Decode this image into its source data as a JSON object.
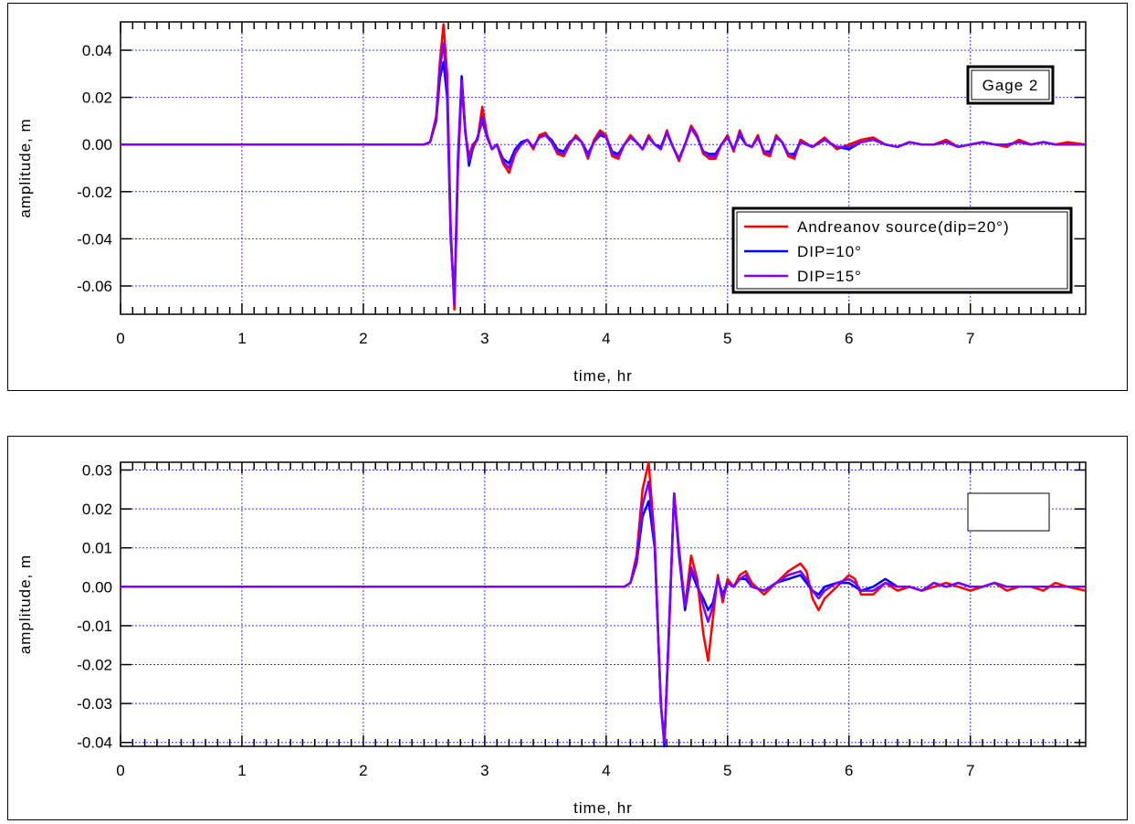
{
  "chart_data": [
    {
      "type": "line",
      "title": "",
      "annotation": "Gage 2",
      "xlabel": "time, hr",
      "ylabel": "amplitude, m",
      "xlim": [
        0,
        7.95
      ],
      "ylim": [
        -0.072,
        0.052
      ],
      "x_ticks": [
        0,
        1,
        2,
        3,
        4,
        5,
        6,
        7
      ],
      "y_ticks": [
        0.04,
        0.02,
        0.0,
        -0.02,
        -0.04,
        -0.06
      ],
      "y_tick_labels": [
        "0.04",
        "0.02",
        "0.00",
        "-0.02",
        "-0.04",
        "-0.06"
      ],
      "grid": true,
      "legend_position": "bottom-right",
      "series": [
        {
          "name": "Andreanov source(dip=20°)",
          "color": "#ff0000",
          "x": [
            0,
            2.5,
            2.55,
            2.6,
            2.63,
            2.66,
            2.69,
            2.72,
            2.75,
            2.78,
            2.81,
            2.84,
            2.87,
            2.9,
            2.94,
            2.98,
            3.02,
            3.06,
            3.1,
            3.15,
            3.2,
            3.25,
            3.3,
            3.35,
            3.4,
            3.45,
            3.5,
            3.55,
            3.6,
            3.65,
            3.7,
            3.75,
            3.8,
            3.85,
            3.9,
            3.95,
            4.0,
            4.05,
            4.1,
            4.15,
            4.2,
            4.25,
            4.3,
            4.35,
            4.4,
            4.45,
            4.5,
            4.55,
            4.6,
            4.65,
            4.7,
            4.75,
            4.8,
            4.85,
            4.9,
            4.95,
            5.0,
            5.05,
            5.1,
            5.15,
            5.2,
            5.25,
            5.3,
            5.35,
            5.4,
            5.45,
            5.5,
            5.55,
            5.6,
            5.7,
            5.8,
            5.9,
            6.0,
            6.1,
            6.2,
            6.3,
            6.4,
            6.5,
            6.6,
            6.7,
            6.8,
            6.9,
            7.0,
            7.1,
            7.2,
            7.3,
            7.4,
            7.5,
            7.6,
            7.7,
            7.8,
            7.95
          ],
          "y": [
            0,
            0,
            0.001,
            0.012,
            0.035,
            0.051,
            0.03,
            -0.035,
            -0.07,
            -0.01,
            0.025,
            0.005,
            -0.005,
            0.0,
            0.002,
            0.016,
            0.004,
            -0.002,
            0.0,
            -0.008,
            -0.012,
            -0.004,
            0.0,
            0.002,
            -0.002,
            0.004,
            0.005,
            0.001,
            -0.004,
            -0.005,
            0.0,
            0.004,
            0.001,
            -0.006,
            0.002,
            0.006,
            0.004,
            -0.005,
            -0.006,
            0.0,
            0.004,
            0.001,
            -0.002,
            0.004,
            0.0,
            -0.002,
            0.006,
            -0.001,
            -0.007,
            0.0,
            0.008,
            0.004,
            -0.004,
            -0.006,
            -0.006,
            0.0,
            0.004,
            -0.003,
            0.006,
            0.0,
            -0.001,
            0.004,
            -0.004,
            -0.005,
            0.004,
            0.001,
            -0.005,
            -0.006,
            0.002,
            -0.001,
            0.003,
            -0.002,
            0.0,
            0.002,
            0.003,
            0.0,
            -0.001,
            0.001,
            0.0,
            0.0,
            0.002,
            -0.001,
            0.0,
            0.001,
            0.0,
            -0.001,
            0.002,
            0.0,
            0.001,
            0.0,
            0.001,
            0.0
          ]
        },
        {
          "name": "DIP=10°",
          "color": "#0000ff",
          "x": [
            0,
            2.5,
            2.55,
            2.6,
            2.63,
            2.66,
            2.69,
            2.72,
            2.75,
            2.78,
            2.81,
            2.84,
            2.87,
            2.9,
            2.94,
            2.98,
            3.02,
            3.06,
            3.1,
            3.15,
            3.2,
            3.25,
            3.3,
            3.35,
            3.4,
            3.45,
            3.5,
            3.55,
            3.6,
            3.65,
            3.7,
            3.75,
            3.8,
            3.85,
            3.9,
            3.95,
            4.0,
            4.05,
            4.1,
            4.15,
            4.2,
            4.25,
            4.3,
            4.35,
            4.4,
            4.45,
            4.5,
            4.55,
            4.6,
            4.65,
            4.7,
            4.75,
            4.8,
            4.85,
            4.9,
            4.95,
            5.0,
            5.05,
            5.1,
            5.15,
            5.2,
            5.25,
            5.3,
            5.35,
            5.4,
            5.45,
            5.5,
            5.55,
            5.6,
            5.7,
            5.8,
            5.9,
            6.0,
            6.1,
            6.2,
            6.3,
            6.4,
            6.5,
            6.6,
            6.7,
            6.8,
            6.9,
            7.0,
            7.1,
            7.2,
            7.3,
            7.4,
            7.5,
            7.6,
            7.7,
            7.8,
            7.95
          ],
          "y": [
            0,
            0,
            0.001,
            0.01,
            0.028,
            0.035,
            0.02,
            -0.04,
            -0.066,
            -0.005,
            0.029,
            0.006,
            -0.009,
            -0.002,
            0.003,
            0.01,
            0.003,
            -0.002,
            0.0,
            -0.006,
            -0.008,
            -0.002,
            0.001,
            0.002,
            -0.001,
            0.003,
            0.004,
            0.002,
            -0.002,
            -0.003,
            0.001,
            0.003,
            0.001,
            -0.004,
            0.001,
            0.004,
            0.003,
            -0.003,
            -0.004,
            0.0,
            0.003,
            0.001,
            -0.002,
            0.003,
            0.0,
            -0.001,
            0.005,
            -0.001,
            -0.006,
            0.0,
            0.007,
            0.003,
            -0.003,
            -0.004,
            -0.004,
            0.0,
            0.003,
            -0.002,
            0.004,
            0.0,
            -0.001,
            0.003,
            -0.003,
            -0.003,
            0.003,
            0.001,
            -0.004,
            -0.004,
            0.001,
            -0.001,
            0.002,
            -0.001,
            -0.002,
            0.001,
            0.002,
            0.0,
            -0.001,
            0.001,
            0.0,
            0.0,
            0.001,
            -0.001,
            0.0,
            0.001,
            0.0,
            0.0,
            0.001,
            0.0,
            0.001,
            0.0,
            0.0,
            0.0
          ]
        },
        {
          "name": "DIP=15°",
          "color": "#8000ff",
          "x": [
            0,
            2.5,
            2.55,
            2.6,
            2.63,
            2.66,
            2.69,
            2.72,
            2.75,
            2.78,
            2.81,
            2.84,
            2.87,
            2.9,
            2.94,
            2.98,
            3.02,
            3.06,
            3.1,
            3.15,
            3.2,
            3.25,
            3.3,
            3.35,
            3.4,
            3.45,
            3.5,
            3.55,
            3.6,
            3.65,
            3.7,
            3.75,
            3.8,
            3.85,
            3.9,
            3.95,
            4.0,
            4.05,
            4.1,
            4.15,
            4.2,
            4.25,
            4.3,
            4.35,
            4.4,
            4.45,
            4.5,
            4.55,
            4.6,
            4.65,
            4.7,
            4.75,
            4.8,
            4.85,
            4.9,
            4.95,
            5.0,
            5.05,
            5.1,
            5.15,
            5.2,
            5.25,
            5.3,
            5.35,
            5.4,
            5.45,
            5.5,
            5.55,
            5.6,
            5.7,
            5.8,
            5.9,
            6.0,
            6.1,
            6.2,
            6.3,
            6.4,
            6.5,
            6.6,
            6.7,
            6.8,
            6.9,
            7.0,
            7.1,
            7.2,
            7.3,
            7.4,
            7.5,
            7.6,
            7.7,
            7.8,
            7.95
          ],
          "y": [
            0,
            0,
            0.001,
            0.011,
            0.032,
            0.043,
            0.025,
            -0.038,
            -0.068,
            -0.007,
            0.027,
            0.005,
            -0.007,
            -0.001,
            0.002,
            0.012,
            0.003,
            -0.002,
            0.0,
            -0.007,
            -0.01,
            -0.003,
            0.0,
            0.002,
            -0.001,
            0.003,
            0.004,
            0.001,
            -0.003,
            -0.004,
            0.001,
            0.003,
            0.001,
            -0.005,
            0.001,
            0.005,
            0.003,
            -0.004,
            -0.005,
            0.0,
            0.003,
            0.001,
            -0.002,
            0.003,
            0.0,
            -0.002,
            0.005,
            -0.001,
            -0.006,
            0.0,
            0.007,
            0.003,
            -0.003,
            -0.005,
            -0.005,
            0.0,
            0.003,
            -0.002,
            0.005,
            0.0,
            -0.001,
            0.003,
            -0.003,
            -0.004,
            0.003,
            0.001,
            -0.004,
            -0.005,
            0.001,
            -0.001,
            0.002,
            -0.001,
            -0.001,
            0.001,
            0.002,
            0.0,
            -0.001,
            0.001,
            0.0,
            0.0,
            0.001,
            -0.001,
            0.0,
            0.001,
            0.0,
            0.0,
            0.001,
            0.0,
            0.001,
            0.0,
            0.0,
            0.0
          ]
        }
      ]
    },
    {
      "type": "line",
      "title": "",
      "xlabel": "time, hr",
      "ylabel": "amplitude, m",
      "xlim": [
        0,
        7.95
      ],
      "ylim": [
        -0.041,
        0.032
      ],
      "x_ticks": [
        0,
        1,
        2,
        3,
        4,
        5,
        6,
        7
      ],
      "y_ticks": [
        0.03,
        0.02,
        0.01,
        0.0,
        -0.01,
        -0.02,
        -0.03,
        -0.04
      ],
      "y_tick_labels": [
        "0.03",
        "0.02",
        "0.01",
        "0.00",
        "-0.01",
        "-0.02",
        "-0.03",
        "-0.04"
      ],
      "grid": true,
      "legend_position": "top-right",
      "series": [
        {
          "name": "",
          "color": "#ff0000",
          "x": [
            0,
            4.15,
            4.2,
            4.25,
            4.3,
            4.35,
            4.4,
            4.45,
            4.48,
            4.52,
            4.56,
            4.6,
            4.65,
            4.7,
            4.75,
            4.8,
            4.84,
            4.88,
            4.92,
            4.96,
            5.0,
            5.05,
            5.1,
            5.15,
            5.2,
            5.3,
            5.4,
            5.5,
            5.6,
            5.65,
            5.7,
            5.75,
            5.8,
            5.9,
            6.0,
            6.05,
            6.1,
            6.2,
            6.3,
            6.4,
            6.5,
            6.6,
            6.7,
            6.8,
            6.9,
            7.0,
            7.1,
            7.2,
            7.3,
            7.4,
            7.5,
            7.6,
            7.7,
            7.8,
            7.95
          ],
          "y": [
            0,
            0,
            0.001,
            0.008,
            0.025,
            0.032,
            0.012,
            -0.03,
            -0.04,
            -0.01,
            0.024,
            0.01,
            -0.005,
            0.008,
            0.002,
            -0.012,
            -0.019,
            -0.008,
            0.003,
            -0.004,
            0.002,
            0.0,
            0.003,
            0.004,
            0.001,
            -0.002,
            0.001,
            0.004,
            0.006,
            0.004,
            -0.003,
            -0.006,
            -0.003,
            0.0,
            0.003,
            0.002,
            -0.002,
            -0.002,
            0.001,
            -0.001,
            0.0,
            -0.001,
            0.0,
            0.001,
            0.0,
            -0.001,
            0.0,
            0.001,
            -0.001,
            0.0,
            0.0,
            -0.001,
            0.001,
            0.0,
            -0.001
          ]
        },
        {
          "name": "",
          "color": "#0000ff",
          "x": [
            0,
            4.15,
            4.2,
            4.25,
            4.3,
            4.35,
            4.4,
            4.45,
            4.48,
            4.52,
            4.56,
            4.6,
            4.65,
            4.7,
            4.75,
            4.8,
            4.84,
            4.88,
            4.92,
            4.96,
            5.0,
            5.05,
            5.1,
            5.15,
            5.2,
            5.3,
            5.4,
            5.5,
            5.6,
            5.65,
            5.7,
            5.75,
            5.8,
            5.9,
            6.0,
            6.05,
            6.1,
            6.2,
            6.3,
            6.4,
            6.5,
            6.6,
            6.7,
            6.8,
            6.9,
            7.0,
            7.1,
            7.2,
            7.3,
            7.4,
            7.5,
            7.6,
            7.7,
            7.8,
            7.95
          ],
          "y": [
            0,
            0,
            0.001,
            0.006,
            0.018,
            0.022,
            0.01,
            -0.03,
            -0.041,
            -0.008,
            0.024,
            0.008,
            -0.006,
            0.004,
            0.0,
            -0.003,
            -0.006,
            -0.004,
            0.002,
            -0.002,
            0.001,
            0.0,
            0.002,
            0.002,
            0.0,
            -0.001,
            0.001,
            0.002,
            0.003,
            0.001,
            -0.001,
            -0.002,
            0.0,
            0.001,
            0.001,
            0.0,
            -0.001,
            0.0,
            0.002,
            0.0,
            0.0,
            -0.001,
            0.001,
            0.0,
            0.001,
            0.0,
            0.0,
            0.001,
            0.0,
            0.0,
            0.0,
            0.0,
            0.0,
            0.0,
            0.0
          ]
        },
        {
          "name": "",
          "color": "#8000ff",
          "x": [
            0,
            4.15,
            4.2,
            4.25,
            4.3,
            4.35,
            4.4,
            4.45,
            4.48,
            4.52,
            4.56,
            4.6,
            4.65,
            4.7,
            4.75,
            4.8,
            4.84,
            4.88,
            4.92,
            4.96,
            5.0,
            5.05,
            5.1,
            5.15,
            5.2,
            5.3,
            5.4,
            5.5,
            5.6,
            5.65,
            5.7,
            5.75,
            5.8,
            5.9,
            6.0,
            6.05,
            6.1,
            6.2,
            6.3,
            6.4,
            6.5,
            6.6,
            6.7,
            6.8,
            6.9,
            7.0,
            7.1,
            7.2,
            7.3,
            7.4,
            7.5,
            7.6,
            7.7,
            7.8,
            7.95
          ],
          "y": [
            0,
            0,
            0.001,
            0.007,
            0.021,
            0.027,
            0.011,
            -0.03,
            -0.04,
            -0.009,
            0.024,
            0.009,
            -0.005,
            0.005,
            0.001,
            -0.005,
            -0.009,
            -0.005,
            0.002,
            -0.003,
            0.001,
            0.0,
            0.002,
            0.003,
            0.0,
            -0.001,
            0.001,
            0.003,
            0.004,
            0.002,
            -0.001,
            -0.003,
            -0.001,
            0.001,
            0.002,
            0.001,
            -0.001,
            -0.001,
            0.001,
            0.0,
            0.0,
            -0.001,
            0.001,
            0.0,
            0.001,
            0.0,
            0.0,
            0.001,
            0.0,
            0.0,
            0.0,
            0.0,
            0.0,
            0.0,
            0.0
          ]
        }
      ]
    }
  ]
}
